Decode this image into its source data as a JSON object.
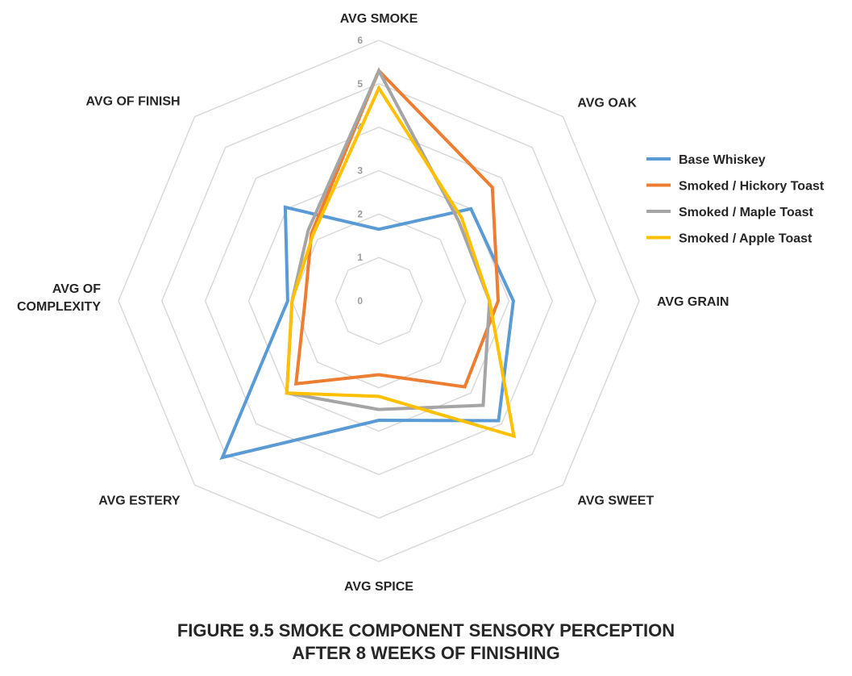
{
  "chart_data": {
    "type": "radar",
    "title_lines": [
      "FIGURE 9.5  SMOKE COMPONENT SENSORY PERCEPTION",
      "AFTER 8 WEEKS OF FINISHING"
    ],
    "axes": [
      [
        "AVG SMOKE"
      ],
      [
        "AVG OAK"
      ],
      [
        "AVG GRAIN"
      ],
      [
        "AVG SWEET"
      ],
      [
        "AVG SPICE"
      ],
      [
        "AVG ESTERY"
      ],
      [
        "AVG OF",
        "COMPLEXITY"
      ],
      [
        "AVG OF FINISH"
      ]
    ],
    "rlim": [
      0,
      6
    ],
    "ticks": [
      "0",
      "1",
      "2",
      "3",
      "4",
      "5",
      "6"
    ],
    "grid": true,
    "legend_position": "right",
    "series": [
      {
        "name": "Base Whiskey",
        "color": "#5b9bd5",
        "values": [
          1.65,
          3.0,
          3.1,
          3.9,
          2.75,
          5.1,
          2.1,
          3.05
        ]
      },
      {
        "name": "Smoked / Hickory Toast",
        "color": "#ed7d31",
        "values": [
          5.3,
          3.7,
          2.75,
          2.8,
          1.7,
          2.7,
          1.7,
          2.2
        ]
      },
      {
        "name": "Smoked / Maple Toast",
        "color": "#a5a5a5",
        "values": [
          5.3,
          2.6,
          2.55,
          3.4,
          2.5,
          3.0,
          2.0,
          2.3
        ]
      },
      {
        "name": "Smoked / Apple Toast",
        "color": "#ffc000",
        "values": [
          4.9,
          2.7,
          2.55,
          4.4,
          2.2,
          3.0,
          2.0,
          2.15
        ]
      }
    ]
  }
}
